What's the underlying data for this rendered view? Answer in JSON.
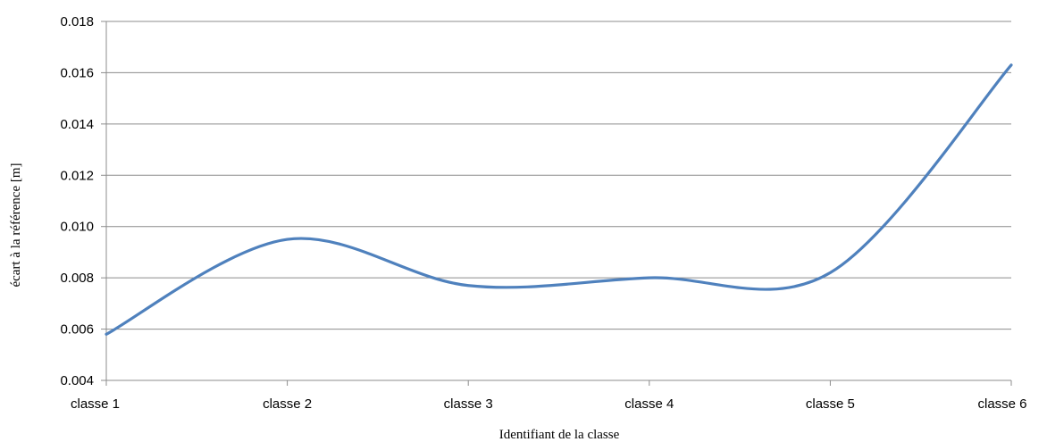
{
  "chart_data": {
    "type": "line",
    "title": "",
    "xlabel": "Identifiant de la classe",
    "ylabel": "écart à la référence [m]",
    "categories": [
      "classe 1",
      "classe 2",
      "classe 3",
      "classe 4",
      "classe 5",
      "classe 6"
    ],
    "series": [
      {
        "values": [
          0.0058,
          0.0095,
          0.0077,
          0.008,
          0.0082,
          0.0163
        ]
      }
    ],
    "ylim": [
      0.004,
      0.018
    ],
    "yticks": [
      "0.004",
      "0.006",
      "0.008",
      "0.010",
      "0.012",
      "0.014",
      "0.016",
      "0.018"
    ],
    "grid": true,
    "smooth": true,
    "legend": "none",
    "colors": {
      "series": "#4f81bd",
      "grid": "#8c8c8c"
    }
  }
}
